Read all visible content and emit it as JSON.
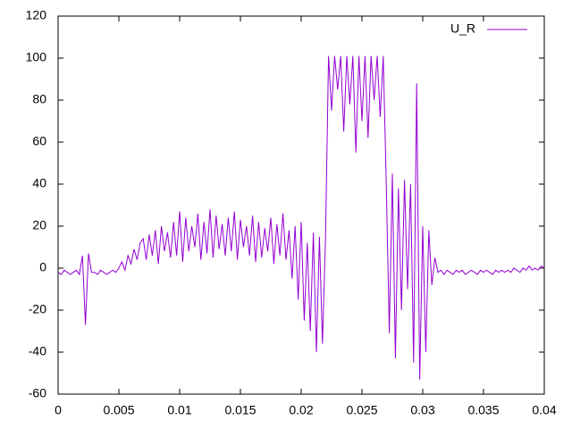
{
  "chart_data": {
    "type": "line",
    "x": [
      0,
      0.00025,
      0.0005,
      0.00075,
      0.001,
      0.00125,
      0.0015,
      0.00175,
      0.002,
      0.00225,
      0.0025,
      0.00275,
      0.003,
      0.00325,
      0.0035,
      0.00375,
      0.004,
      0.00425,
      0.0045,
      0.00475,
      0.005,
      0.00525,
      0.0055,
      0.00575,
      0.006,
      0.00625,
      0.0065,
      0.00675,
      0.007,
      0.00725,
      0.0075,
      0.00775,
      0.008,
      0.00825,
      0.0085,
      0.00875,
      0.009,
      0.00925,
      0.0095,
      0.00975,
      0.01,
      0.01025,
      0.0105,
      0.01075,
      0.011,
      0.01125,
      0.0115,
      0.01175,
      0.012,
      0.01225,
      0.0125,
      0.01275,
      0.013,
      0.01325,
      0.0135,
      0.01375,
      0.014,
      0.01425,
      0.0145,
      0.01475,
      0.015,
      0.01525,
      0.0155,
      0.01575,
      0.016,
      0.01625,
      0.0165,
      0.01675,
      0.017,
      0.01725,
      0.0175,
      0.01775,
      0.018,
      0.01825,
      0.0185,
      0.01875,
      0.019,
      0.01925,
      0.0195,
      0.01975,
      0.02,
      0.02025,
      0.0205,
      0.02075,
      0.021,
      0.02125,
      0.0215,
      0.02175,
      0.022,
      0.02225,
      0.0225,
      0.02275,
      0.023,
      0.02325,
      0.0235,
      0.02375,
      0.024,
      0.02425,
      0.0245,
      0.02475,
      0.025,
      0.02525,
      0.0255,
      0.02575,
      0.026,
      0.02625,
      0.0265,
      0.02675,
      0.027,
      0.02725,
      0.0275,
      0.02775,
      0.028,
      0.02825,
      0.0285,
      0.02875,
      0.029,
      0.02925,
      0.0295,
      0.02975,
      0.03,
      0.03025,
      0.0305,
      0.03075,
      0.031,
      0.03125,
      0.0315,
      0.03175,
      0.032,
      0.03225,
      0.0325,
      0.03275,
      0.033,
      0.03325,
      0.0335,
      0.03375,
      0.034,
      0.03425,
      0.0345,
      0.03475,
      0.035,
      0.03525,
      0.0355,
      0.03575,
      0.036,
      0.03625,
      0.0365,
      0.03675,
      0.037,
      0.03725,
      0.0375,
      0.03775,
      0.038,
      0.03825,
      0.0385,
      0.03875,
      0.039,
      0.03925,
      0.0395,
      0.03975,
      0.04
    ],
    "series": [
      {
        "name": "U_R",
        "color": "#9400d3",
        "values": [
          -2,
          -3,
          -1,
          -2,
          -3,
          -2,
          -1,
          -3,
          6,
          -27,
          7,
          -2,
          -2,
          -3,
          -1,
          -2,
          -3,
          -2,
          -1,
          -2,
          0,
          3,
          -1,
          6,
          2,
          9,
          4,
          12,
          14,
          4,
          16,
          6,
          18,
          2,
          20,
          8,
          17,
          5,
          22,
          6,
          27,
          3,
          24,
          8,
          20,
          10,
          26,
          4,
          22,
          7,
          28,
          5,
          25,
          9,
          21,
          6,
          24,
          8,
          27,
          4,
          23,
          10,
          20,
          6,
          25,
          3,
          22,
          5,
          19,
          8,
          24,
          2,
          21,
          6,
          26,
          4,
          18,
          -5,
          20,
          -15,
          22,
          -25,
          12,
          -30,
          17,
          -40,
          15,
          -36,
          14,
          101,
          75,
          101,
          85,
          101,
          65,
          101,
          78,
          101,
          55,
          101,
          70,
          101,
          62,
          101,
          80,
          101,
          72,
          101,
          40,
          -31,
          45,
          -43,
          38,
          -20,
          42,
          -10,
          40,
          -45,
          88,
          -53,
          20,
          -40,
          18,
          -8,
          5,
          -2,
          -1,
          -3,
          -1,
          -2,
          -3,
          -1,
          -2,
          -1,
          -3,
          -2,
          -1,
          -2,
          -3,
          -1,
          -2,
          -1,
          -2,
          -3,
          -1,
          -2,
          -1,
          -2,
          -1,
          -2,
          0,
          -1,
          -2,
          0,
          -1,
          1,
          -1,
          0,
          -1,
          1,
          0
        ]
      }
    ],
    "xlim": [
      0,
      0.04
    ],
    "xticks": [
      0,
      0.005,
      0.01,
      0.015,
      0.02,
      0.025,
      0.03,
      0.035,
      0.04
    ],
    "ylim": [
      -60,
      120
    ],
    "yticks": [
      -60,
      -40,
      -20,
      0,
      20,
      40,
      60,
      80,
      100,
      120
    ],
    "grid": false,
    "legend": "top-right"
  }
}
